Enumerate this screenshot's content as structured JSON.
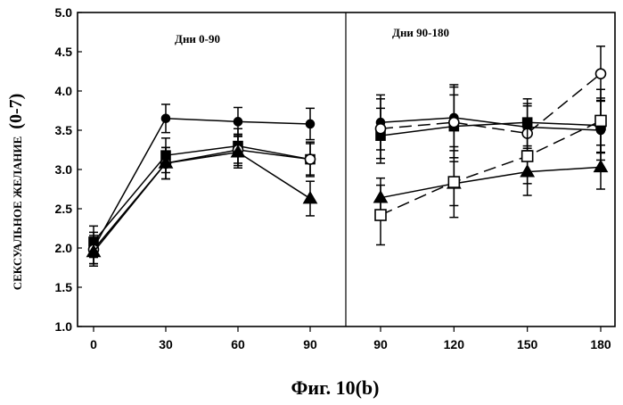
{
  "chart_data": {
    "type": "line",
    "ylabel": "СЕКСУАЛЬНОЕ ЖЕЛАНИЕ",
    "ylabel_suffix": "(0-7)",
    "caption": "Фиг. 10(b)",
    "ylim": [
      1.0,
      5.0
    ],
    "yticks": [
      "1.0",
      "1.5",
      "2.0",
      "2.5",
      "3.0",
      "3.5",
      "4.0",
      "4.5",
      "5.0"
    ],
    "grid": false,
    "panels": [
      {
        "title": "Дни 0-90",
        "xticks": [
          "0",
          "30",
          "60",
          "90"
        ],
        "x": [
          0,
          30,
          60,
          90
        ],
        "series": [
          {
            "marker": "circle-filled",
            "dash": "solid",
            "y": [
              2.0,
              3.65,
              3.61,
              3.58
            ],
            "err": [
              0.2,
              0.18,
              0.18,
              0.2
            ]
          },
          {
            "marker": "square-filled",
            "dash": "solid",
            "y": [
              2.08,
              3.18,
              3.3,
              3.13
            ],
            "err": [
              0.2,
              0.22,
              0.22,
              0.22
            ]
          },
          {
            "marker": "circle-open",
            "dash": "solid",
            "y": [
              1.98,
              3.08,
              3.25,
              3.13
            ],
            "err": [
              0.18,
              0.2,
              0.2,
              0.2
            ]
          },
          {
            "marker": "triangle-filled",
            "dash": "solid",
            "y": [
              1.95,
              3.08,
              3.22,
              2.63
            ],
            "err": [
              0.18,
              0.2,
              0.2,
              0.22
            ]
          }
        ]
      },
      {
        "title": "Дни 90-180",
        "xticks": [
          "90",
          "120",
          "150",
          "180"
        ],
        "x": [
          90,
          120,
          150,
          180
        ],
        "series": [
          {
            "marker": "circle-filled",
            "dash": "solid",
            "y": [
              3.6,
              3.66,
              3.54,
              3.5
            ],
            "err": [
              0.35,
              0.42,
              0.3,
              0.38
            ]
          },
          {
            "marker": "square-filled",
            "dash": "solid",
            "y": [
              3.43,
              3.55,
              3.6,
              3.56
            ],
            "err": [
              0.35,
              0.4,
              0.3,
              0.35
            ]
          },
          {
            "marker": "circle-open",
            "dash": "dashed",
            "y": [
              3.52,
              3.6,
              3.46,
              4.22
            ],
            "err": [
              0.38,
              0.45,
              0.35,
              0.35
            ]
          },
          {
            "marker": "triangle-filled",
            "dash": "solid",
            "y": [
              2.64,
              2.82,
              2.97,
              3.03
            ],
            "err": [
              0.25,
              0.28,
              0.3,
              0.28
            ]
          },
          {
            "marker": "square-open",
            "dash": "dashed",
            "y": [
              2.42,
              2.84,
              3.17,
              3.62
            ],
            "err": [
              0.38,
              0.45,
              0.35,
              0.4
            ]
          }
        ]
      }
    ]
  }
}
